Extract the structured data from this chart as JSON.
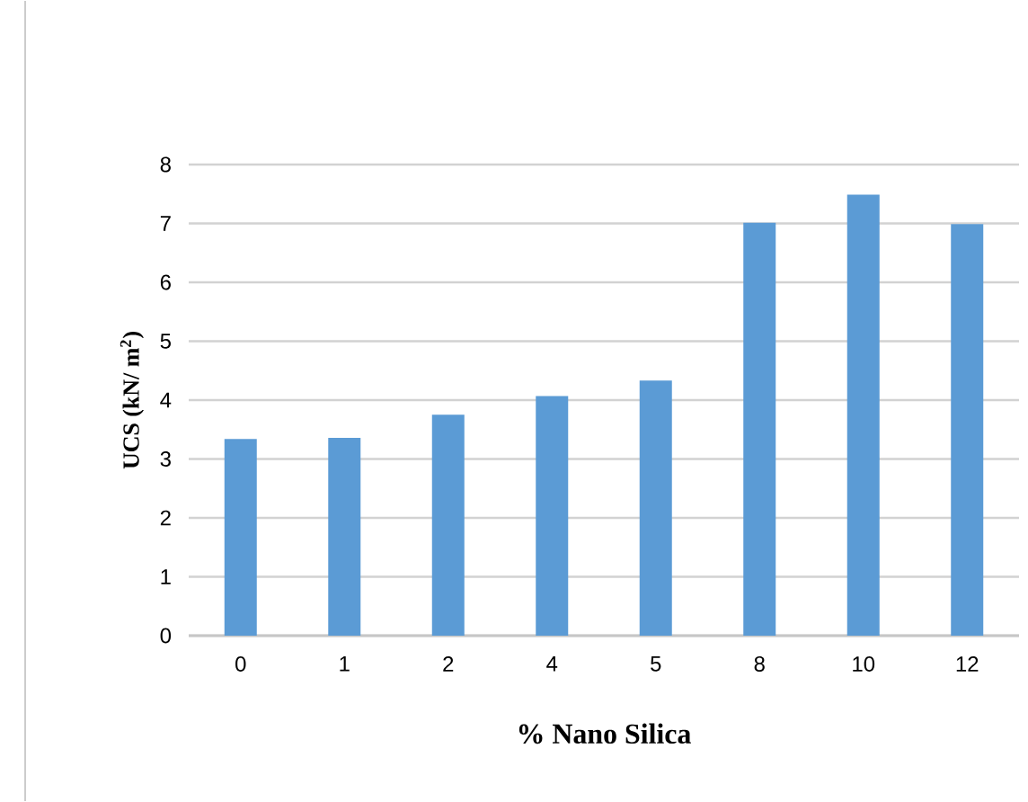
{
  "chart_data": {
    "type": "bar",
    "categories": [
      "0",
      "1",
      "2",
      "4",
      "5",
      "8",
      "10",
      "12"
    ],
    "values": [
      3.34,
      3.36,
      3.75,
      4.07,
      4.33,
      7.01,
      7.49,
      6.99
    ],
    "color": "#5b9bd5",
    "xlabel": "% Nano Silica",
    "ylabel": "UCS  (kN/ m$^{2}$)",
    "ylim": [
      0,
      8
    ],
    "yticks": [
      0,
      1,
      2,
      3,
      4,
      5,
      6,
      7,
      8
    ],
    "grid": "y"
  }
}
